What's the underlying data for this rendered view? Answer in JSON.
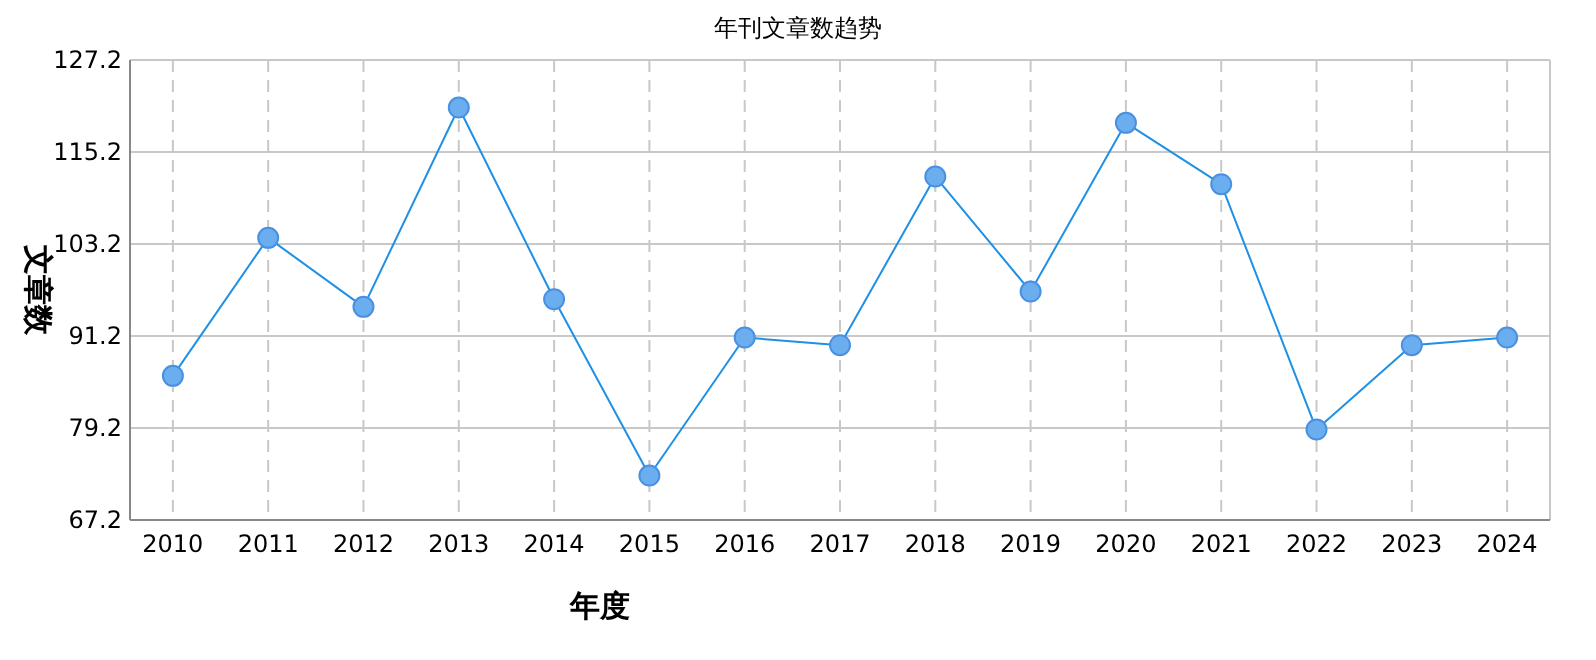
{
  "chart_data": {
    "type": "line",
    "title": "年刊文章数趋势",
    "xlabel": "年度",
    "ylabel": "文章数",
    "categories": [
      "2010",
      "2011",
      "2012",
      "2013",
      "2014",
      "2015",
      "2016",
      "2017",
      "2018",
      "2019",
      "2020",
      "2021",
      "2022",
      "2023",
      "2024"
    ],
    "series": [
      {
        "color": "#1e90e6",
        "values": [
          86,
          104,
          95,
          121,
          96,
          73,
          91,
          90,
          112,
          97,
          119,
          111,
          79,
          90,
          91
        ]
      }
    ],
    "ylim": [
      67.2,
      127.2
    ],
    "yticks": [
      67.2,
      79.2,
      91.2,
      103.2,
      115.2,
      127.2
    ],
    "grid": true,
    "marker": "circle",
    "line_style": "solid"
  }
}
